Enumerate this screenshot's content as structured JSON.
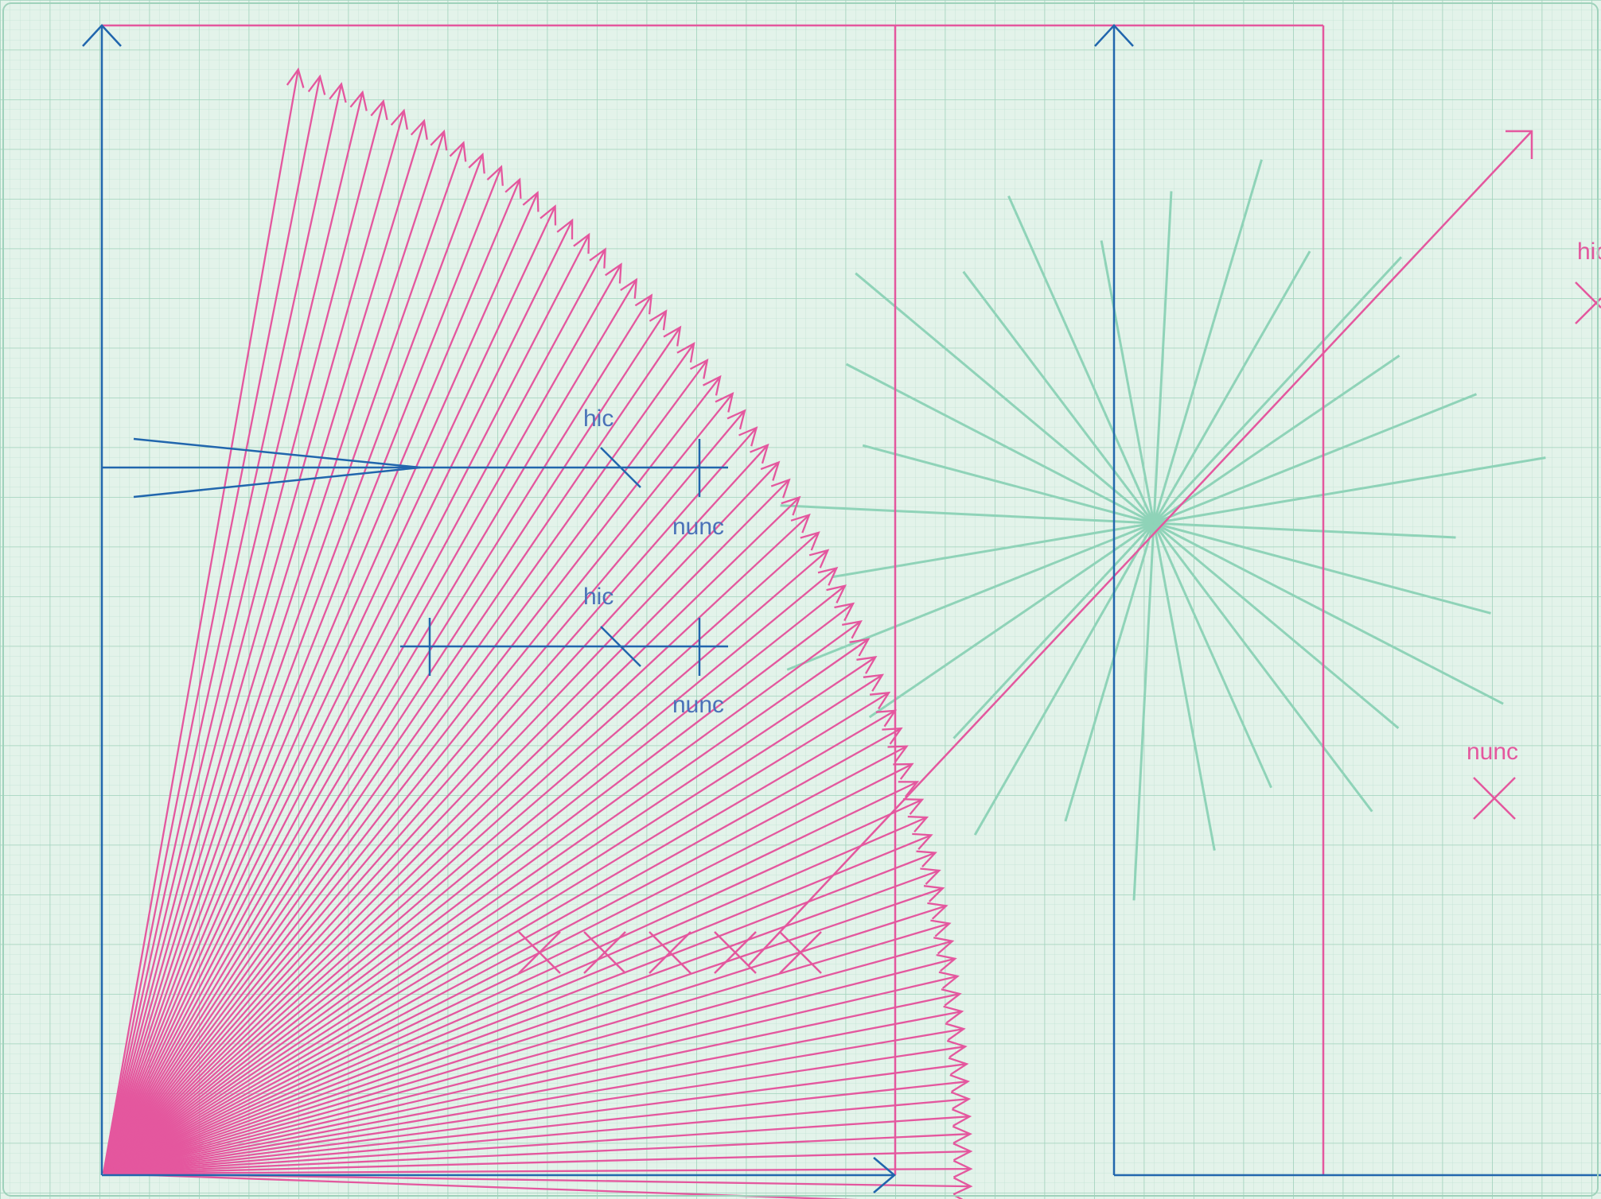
{
  "colors": {
    "paper": "#e3f3ea",
    "grid_fine": "#c2e3d3",
    "grid_major": "#9fd2bb",
    "accent_pink": "#e4579e",
    "accent_blue": "#2166ad",
    "accent_mint": "#8fd3b8"
  },
  "labels": {
    "upper_marker_top": "hic",
    "upper_marker_bottom": "nunc",
    "lower_marker_top": "hic",
    "lower_marker_bottom": "nunc",
    "right_edge_top": "hic",
    "right_side_bottom": "nunc"
  },
  "diagram": {
    "fan_line_count": 72,
    "starburst_ray_count": 28,
    "cross_row_count": 5
  }
}
